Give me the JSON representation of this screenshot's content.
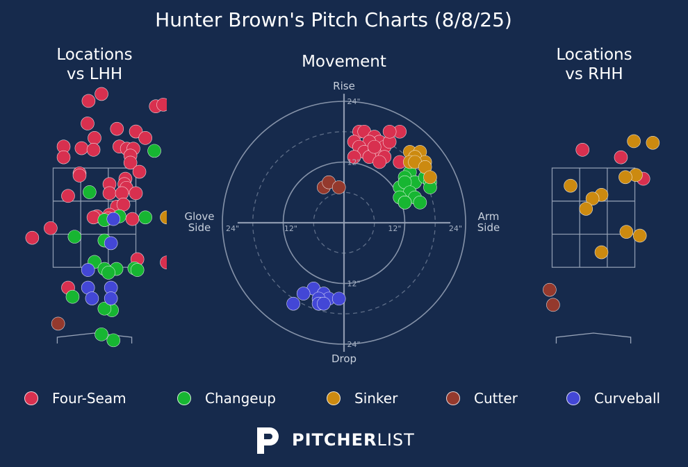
{
  "title": "Hunter Brown's Pitch Charts (8/8/25)",
  "colors": {
    "background": "#162a4c",
    "Four-Seam": "#d8304f",
    "Changeup": "#17b632",
    "Sinker": "#cc8a10",
    "Cutter": "#94392d",
    "Curveball": "#4347d6",
    "grid": "#9aa6ba"
  },
  "panels": {
    "lhh_title": "Locations\nvs LHH",
    "movement_title": "Movement",
    "rhh_title": "Locations\nvs RHH"
  },
  "movement_labels": {
    "rise": "Rise",
    "drop": "Drop",
    "glove": "Glove\nSide",
    "arm": "Arm\nSide",
    "ring_12": "12\"",
    "ring_24": "24\""
  },
  "legend": [
    {
      "name": "Four-Seam",
      "icon": "circle-marker"
    },
    {
      "name": "Changeup",
      "icon": "circle-marker"
    },
    {
      "name": "Sinker",
      "icon": "circle-marker"
    },
    {
      "name": "Cutter",
      "icon": "circle-marker"
    },
    {
      "name": "Curveball",
      "icon": "circle-marker"
    }
  ],
  "brand": {
    "bold": "PITCHER",
    "light": "LIST",
    "logo_icon": "pitcherlist-p-icon"
  },
  "chart_data": [
    {
      "type": "scatter",
      "name": "locations-lhh",
      "title": "Locations vs LHH",
      "units": "plate_x / plate_z (ft), catcher view",
      "xlim": [
        -1.45,
        1.45
      ],
      "ylim": [
        0.35,
        4.85
      ],
      "strike_zone": {
        "x": [
          -0.83,
          0.83
        ],
        "z": [
          1.55,
          3.4
        ]
      },
      "series": [
        {
          "name": "Four-Seam",
          "points": [
            [
              0.14,
              4.78
            ],
            [
              -0.12,
              4.65
            ],
            [
              1.23,
              4.55
            ],
            [
              1.38,
              4.58
            ],
            [
              -0.14,
              4.23
            ],
            [
              0.45,
              4.13
            ],
            [
              0.83,
              4.08
            ],
            [
              1.02,
              3.96
            ],
            [
              0.0,
              3.96
            ],
            [
              -0.62,
              3.8
            ],
            [
              -0.26,
              3.77
            ],
            [
              -0.02,
              3.74
            ],
            [
              0.5,
              3.8
            ],
            [
              0.65,
              3.76
            ],
            [
              0.78,
              3.76
            ],
            [
              0.72,
              3.63
            ],
            [
              -0.62,
              3.6
            ],
            [
              0.72,
              3.5
            ],
            [
              -0.3,
              3.3
            ],
            [
              0.9,
              3.33
            ],
            [
              -0.3,
              3.26
            ],
            [
              0.62,
              3.2
            ],
            [
              0.6,
              3.1
            ],
            [
              0.3,
              3.1
            ],
            [
              0.64,
              3.03
            ],
            [
              0.3,
              2.93
            ],
            [
              0.55,
              2.93
            ],
            [
              0.83,
              2.93
            ],
            [
              -0.53,
              2.88
            ],
            [
              0.45,
              2.68
            ],
            [
              0.58,
              2.72
            ],
            [
              0.05,
              2.5
            ],
            [
              0.3,
              2.53
            ],
            [
              0.28,
              2.46
            ],
            [
              -0.02,
              2.48
            ],
            [
              0.76,
              2.45
            ],
            [
              -0.88,
              2.28
            ],
            [
              -1.25,
              2.1
            ],
            [
              0.86,
              1.7
            ],
            [
              1.45,
              1.64
            ],
            [
              -0.53,
              1.17
            ]
          ]
        },
        {
          "name": "Changeup",
          "points": [
            [
              1.2,
              3.72
            ],
            [
              -0.1,
              2.95
            ],
            [
              0.5,
              2.5
            ],
            [
              1.02,
              2.48
            ],
            [
              0.2,
              2.43
            ],
            [
              -0.4,
              2.12
            ],
            [
              0.2,
              2.05
            ],
            [
              0.0,
              1.65
            ],
            [
              0.2,
              1.52
            ],
            [
              0.44,
              1.52
            ],
            [
              0.28,
              1.45
            ],
            [
              0.8,
              1.53
            ],
            [
              0.86,
              1.5
            ],
            [
              -0.44,
              1.0
            ],
            [
              0.35,
              0.75
            ],
            [
              0.2,
              0.78
            ],
            [
              0.14,
              0.3
            ],
            [
              0.38,
              0.19
            ]
          ]
        },
        {
          "name": "Sinker",
          "points": [
            [
              1.45,
              2.48
            ]
          ]
        },
        {
          "name": "Cutter",
          "points": [
            [
              -0.73,
              0.5
            ]
          ]
        },
        {
          "name": "Curveball",
          "points": [
            [
              0.33,
              2.0
            ],
            [
              -0.13,
              1.5
            ],
            [
              0.38,
              2.45
            ],
            [
              -0.13,
              1.17
            ],
            [
              0.33,
              1.17
            ],
            [
              -0.05,
              0.97
            ],
            [
              0.33,
              0.97
            ]
          ]
        }
      ]
    },
    {
      "type": "scatter",
      "name": "movement",
      "title": "Movement",
      "units": "horizontal / induced vertical break (inches); + = arm side / rise",
      "xlim": [
        -24,
        24
      ],
      "ylim": [
        -24,
        24
      ],
      "rings": [
        6,
        12,
        18,
        24
      ],
      "series": [
        {
          "name": "Four-Seam",
          "points": [
            [
              3,
              18
            ],
            [
              4,
              18
            ],
            [
              6,
              17
            ],
            [
              7,
              16
            ],
            [
              2,
              16
            ],
            [
              5,
              16
            ],
            [
              8,
              15
            ],
            [
              3,
              15
            ],
            [
              4,
              14
            ],
            [
              6,
              14
            ],
            [
              9,
              16
            ],
            [
              2,
              13
            ],
            [
              8,
              13
            ],
            [
              5,
              13
            ],
            [
              7,
              12
            ],
            [
              6,
              15
            ],
            [
              11,
              18
            ],
            [
              9,
              18
            ],
            [
              11,
              12
            ]
          ]
        },
        {
          "name": "Changeup",
          "points": [
            [
              13,
              10
            ],
            [
              12,
              9
            ],
            [
              14,
              8
            ],
            [
              11,
              7
            ],
            [
              16,
              9
            ],
            [
              17,
              8
            ],
            [
              12,
              8
            ],
            [
              13,
              6
            ],
            [
              11,
              5
            ],
            [
              14,
              5
            ],
            [
              12,
              4
            ],
            [
              15,
              4
            ],
            [
              17,
              7
            ],
            [
              12,
              4
            ]
          ]
        },
        {
          "name": "Sinker",
          "points": [
            [
              13,
              14
            ],
            [
              15,
              14
            ],
            [
              14,
              13
            ],
            [
              13,
              12
            ],
            [
              16,
              12
            ],
            [
              14,
              12
            ],
            [
              16,
              11
            ],
            [
              17,
              9
            ]
          ]
        },
        {
          "name": "Cutter",
          "points": [
            [
              -4,
              7
            ],
            [
              -3,
              8
            ],
            [
              -1,
              7
            ]
          ]
        },
        {
          "name": "Curveball",
          "points": [
            [
              -6,
              -13
            ],
            [
              -8,
              -14
            ],
            [
              -4,
              -14
            ],
            [
              -3,
              -15
            ],
            [
              -5,
              -15
            ],
            [
              -1,
              -15
            ],
            [
              -10,
              -16
            ],
            [
              -5,
              -16
            ],
            [
              -4,
              -16
            ]
          ]
        }
      ]
    },
    {
      "type": "scatter",
      "name": "locations-rhh",
      "title": "Locations vs RHH",
      "units": "plate_x / plate_z (ft), catcher view",
      "xlim": [
        -1.45,
        1.45
      ],
      "ylim": [
        0.35,
        4.85
      ],
      "strike_zone": {
        "x": [
          -0.83,
          0.83
        ],
        "z": [
          1.55,
          3.4
        ]
      },
      "series": [
        {
          "name": "Four-Seam",
          "points": [
            [
              -0.22,
              3.74
            ],
            [
              0.55,
              3.6
            ],
            [
              1.0,
              3.2
            ]
          ]
        },
        {
          "name": "Changeup",
          "points": []
        },
        {
          "name": "Sinker",
          "points": [
            [
              0.81,
              3.9
            ],
            [
              1.19,
              3.87
            ],
            [
              0.85,
              3.27
            ],
            [
              0.64,
              3.23
            ],
            [
              -0.46,
              3.07
            ],
            [
              0.16,
              2.9
            ],
            [
              -0.02,
              2.83
            ],
            [
              -0.15,
              2.64
            ],
            [
              0.66,
              2.21
            ],
            [
              0.93,
              2.14
            ],
            [
              0.16,
              1.83
            ]
          ]
        },
        {
          "name": "Cutter",
          "points": [
            [
              -0.88,
              1.13
            ],
            [
              -0.81,
              0.85
            ]
          ]
        },
        {
          "name": "Curveball",
          "points": []
        }
      ]
    }
  ]
}
